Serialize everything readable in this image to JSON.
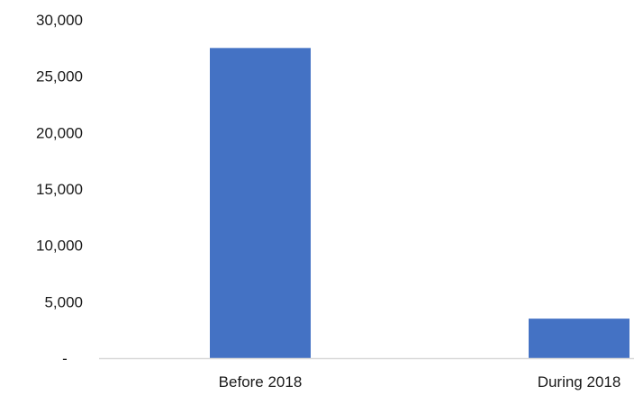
{
  "chart_data": {
    "type": "bar",
    "categories": [
      "Before 2018",
      "During 2018"
    ],
    "series": [
      {
        "values": [
          27500,
          3500
        ]
      }
    ],
    "y_ticks": [
      {
        "value": 0,
        "label": "-"
      },
      {
        "value": 5000,
        "label": "5,000"
      },
      {
        "value": 10000,
        "label": "10,000"
      },
      {
        "value": 15000,
        "label": "15,000"
      },
      {
        "value": 20000,
        "label": "20,000"
      },
      {
        "value": 25000,
        "label": "25,000"
      },
      {
        "value": 30000,
        "label": "30,000"
      }
    ],
    "ylim": [
      0,
      30000
    ],
    "grid": false,
    "legend": "none",
    "bar_color": "#4472C4",
    "axis_color": "#d9d9d9"
  }
}
